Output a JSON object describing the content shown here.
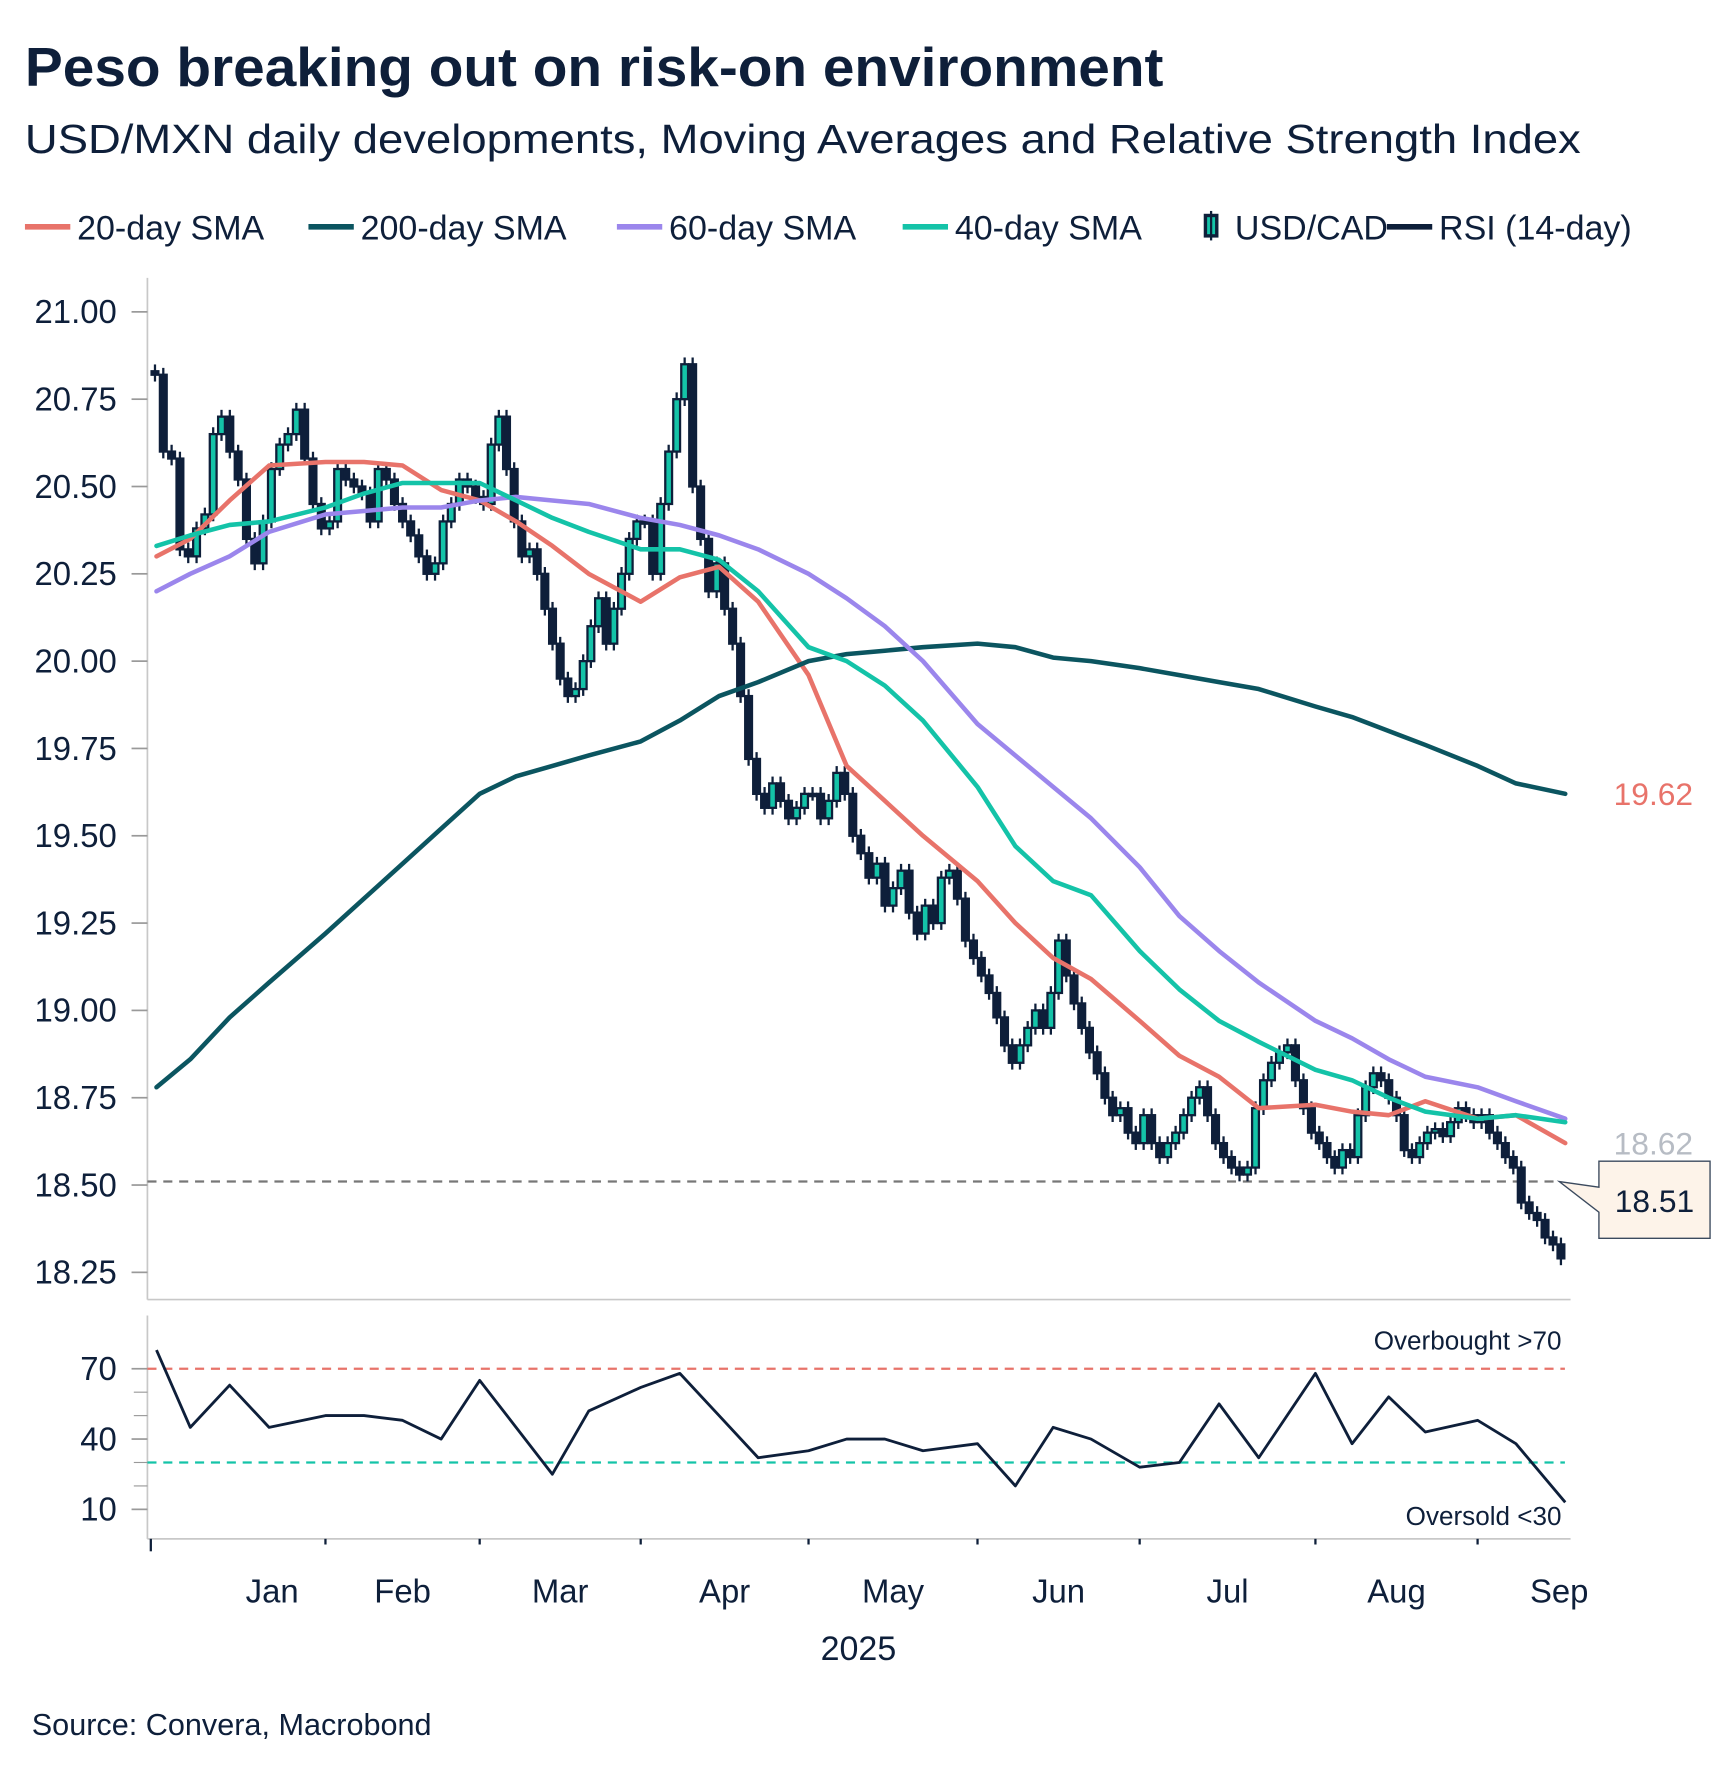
{
  "title": "Peso breaking out on risk-on environment",
  "subtitle": "USD/MXN daily developments, Moving Averages and Relative Strength Index",
  "source": "Source: Convera, Macrobond",
  "legend": [
    {
      "label": "20-day SMA",
      "color": "#e8736a",
      "icon": "line"
    },
    {
      "label": "200-day SMA",
      "color": "#0b5560",
      "icon": "line"
    },
    {
      "label": "60-day SMA",
      "color": "#9b86ec",
      "icon": "line"
    },
    {
      "label": "40-day SMA",
      "color": "#14c3a8",
      "icon": "line"
    },
    {
      "label": "USD/CAD",
      "color": "#0e1f3a",
      "icon": "candlestick"
    },
    {
      "label": "RSI (14-day)",
      "color": "#0e1f3a",
      "icon": "line"
    }
  ],
  "chart_data": [
    {
      "type": "candlestick",
      "ylim": [
        18.2,
        21.1
      ],
      "yticks": [
        "21.00",
        "20.75",
        "20.50",
        "20.25",
        "20.00",
        "19.75",
        "19.50",
        "19.25",
        "19.00",
        "18.75",
        "18.50",
        "18.25"
      ],
      "xticks": [
        "Jan",
        "Feb",
        "Mar",
        "Apr",
        "May",
        "Jun",
        "Jul",
        "Aug",
        "Sep"
      ],
      "xlabel": "2025",
      "grid": false,
      "candles_close_by_month": {
        "Jan": [
          20.82,
          20.6,
          20.58,
          20.32,
          20.3,
          20.38,
          20.42,
          20.65,
          20.7,
          20.6,
          20.52,
          20.35,
          20.28,
          20.4,
          20.55,
          20.62,
          20.65,
          20.72,
          20.58,
          20.45,
          20.38
        ],
        "Feb": [
          20.4,
          20.55,
          20.52,
          20.5,
          20.48,
          20.4,
          20.55,
          20.52,
          20.45,
          20.4,
          20.36,
          20.3,
          20.25,
          20.28,
          20.4,
          20.45,
          20.52,
          20.5,
          20.47
        ],
        "Mar": [
          20.45,
          20.62,
          20.7,
          20.55,
          20.4,
          20.3,
          20.32,
          20.25,
          20.15,
          20.05,
          19.95,
          19.9,
          19.92,
          20.0,
          20.1,
          20.18,
          20.05,
          20.15,
          20.25,
          20.35,
          20.4
        ],
        "Apr": [
          20.4,
          20.25,
          20.45,
          20.6,
          20.75,
          20.85,
          20.5,
          20.35,
          20.2,
          20.28,
          20.15,
          20.05,
          19.9,
          19.72,
          19.62,
          19.58,
          19.65,
          19.6,
          19.55,
          19.58,
          19.62
        ],
        "May": [
          19.62,
          19.55,
          19.6,
          19.68,
          19.62,
          19.5,
          19.45,
          19.38,
          19.42,
          19.3,
          19.35,
          19.4,
          19.28,
          19.22,
          19.3,
          19.25,
          19.38,
          19.4,
          19.32,
          19.2,
          19.15
        ],
        "Jun": [
          19.1,
          19.05,
          18.98,
          18.9,
          18.85,
          18.9,
          18.95,
          19.0,
          18.95,
          19.05,
          19.2,
          19.1,
          19.02,
          18.95,
          18.88,
          18.82,
          18.75,
          18.7,
          18.72,
          18.65,
          18.62
        ],
        "Jul": [
          18.7,
          18.62,
          18.58,
          18.62,
          18.65,
          18.7,
          18.75,
          18.78,
          18.7,
          18.62,
          18.58,
          18.55,
          18.53,
          18.55,
          18.72,
          18.8,
          18.85,
          18.88,
          18.9,
          18.8,
          18.72,
          18.65
        ],
        "Aug": [
          18.62,
          18.58,
          18.55,
          18.6,
          18.58,
          18.7,
          18.78,
          18.82,
          18.8,
          18.75,
          18.7,
          18.6,
          18.58,
          18.62,
          18.65,
          18.66,
          18.64,
          18.68,
          18.72,
          18.7,
          18.68
        ],
        "Sep": [
          18.7,
          18.65,
          18.62,
          18.58,
          18.55,
          18.45,
          18.42,
          18.4,
          18.35,
          18.33,
          18.29
        ]
      },
      "sample_dates": [
        "2025-01-02",
        "2025-01-08",
        "2025-01-15",
        "2025-01-22",
        "2025-02-01",
        "2025-02-08",
        "2025-02-15",
        "2025-02-22",
        "2025-03-01",
        "2025-03-08",
        "2025-03-15",
        "2025-03-22",
        "2025-04-01",
        "2025-04-08",
        "2025-04-15",
        "2025-04-22",
        "2025-05-01",
        "2025-05-08",
        "2025-05-15",
        "2025-05-22",
        "2025-06-01",
        "2025-06-08",
        "2025-06-15",
        "2025-06-22",
        "2025-07-01",
        "2025-07-08",
        "2025-07-15",
        "2025-07-22",
        "2025-08-01",
        "2025-08-08",
        "2025-08-15",
        "2025-08-22",
        "2025-09-01",
        "2025-09-08",
        "2025-09-17"
      ],
      "series": [
        {
          "name": "20-day SMA",
          "color": "#e8736a",
          "values": [
            20.3,
            20.35,
            20.46,
            20.56,
            20.57,
            20.57,
            20.56,
            20.49,
            20.46,
            20.4,
            20.33,
            20.25,
            20.17,
            20.24,
            20.27,
            20.17,
            19.96,
            19.7,
            19.6,
            19.5,
            19.37,
            19.25,
            19.15,
            19.09,
            18.97,
            18.87,
            18.81,
            18.72,
            18.73,
            18.71,
            18.7,
            18.74,
            18.69,
            18.7,
            18.62
          ]
        },
        {
          "name": "200-day SMA",
          "color": "#0b5560",
          "values": [
            18.78,
            18.86,
            18.98,
            19.08,
            19.22,
            19.32,
            19.42,
            19.52,
            19.62,
            19.67,
            19.7,
            19.73,
            19.77,
            19.83,
            19.9,
            19.94,
            20.0,
            20.02,
            20.03,
            20.04,
            20.05,
            20.04,
            20.01,
            20.0,
            19.98,
            19.96,
            19.94,
            19.92,
            19.87,
            19.84,
            19.8,
            19.76,
            19.7,
            19.65,
            19.62
          ]
        },
        {
          "name": "60-day SMA",
          "color": "#9b86ec",
          "values": [
            20.2,
            20.25,
            20.3,
            20.37,
            20.42,
            20.43,
            20.44,
            20.44,
            20.46,
            20.47,
            20.46,
            20.45,
            20.41,
            20.39,
            20.36,
            20.32,
            20.25,
            20.18,
            20.1,
            20.0,
            19.82,
            19.73,
            19.64,
            19.55,
            19.41,
            19.27,
            19.17,
            19.08,
            18.97,
            18.92,
            18.86,
            18.81,
            18.78,
            18.74,
            18.69
          ]
        },
        {
          "name": "40-day SMA",
          "color": "#14c3a8",
          "values": [
            20.33,
            20.36,
            20.39,
            20.4,
            20.44,
            20.48,
            20.51,
            20.51,
            20.51,
            20.46,
            20.41,
            20.37,
            20.32,
            20.32,
            20.29,
            20.2,
            20.04,
            20.0,
            19.93,
            19.83,
            19.64,
            19.47,
            19.37,
            19.33,
            19.17,
            19.06,
            18.97,
            18.91,
            18.83,
            18.8,
            18.75,
            18.71,
            18.69,
            18.7,
            18.68
          ]
        }
      ],
      "support_level": 18.51,
      "annotations": [
        {
          "text": "19.62",
          "value": 19.62,
          "color": "#e8736a"
        },
        {
          "text": "18.62",
          "value": 18.62,
          "color": "#b7bcc4"
        },
        {
          "text": "18.51",
          "value": 18.51,
          "color": "#0e1f3a",
          "box_fill": "#fdf3e9"
        }
      ],
      "up_candle_color": "#14c3a8",
      "down_candle_color": "#0e1f3a"
    },
    {
      "type": "line",
      "name": "RSI (14-day)",
      "ylim": [
        5,
        85
      ],
      "yticks": [
        "70",
        "40",
        "10"
      ],
      "sample_dates_ref": "same as price panel",
      "values": [
        78,
        45,
        63,
        45,
        50,
        50,
        48,
        40,
        65,
        45,
        25,
        52,
        62,
        68,
        50,
        32,
        35,
        40,
        40,
        35,
        38,
        20,
        45,
        40,
        28,
        30,
        55,
        32,
        68,
        38,
        58,
        43,
        48,
        38,
        13
      ],
      "overbought": {
        "value": 70,
        "label": "Overbought >70",
        "color": "#e8736a"
      },
      "oversold": {
        "value": 30,
        "label": "Oversold <30",
        "color": "#14c3a8"
      }
    }
  ]
}
